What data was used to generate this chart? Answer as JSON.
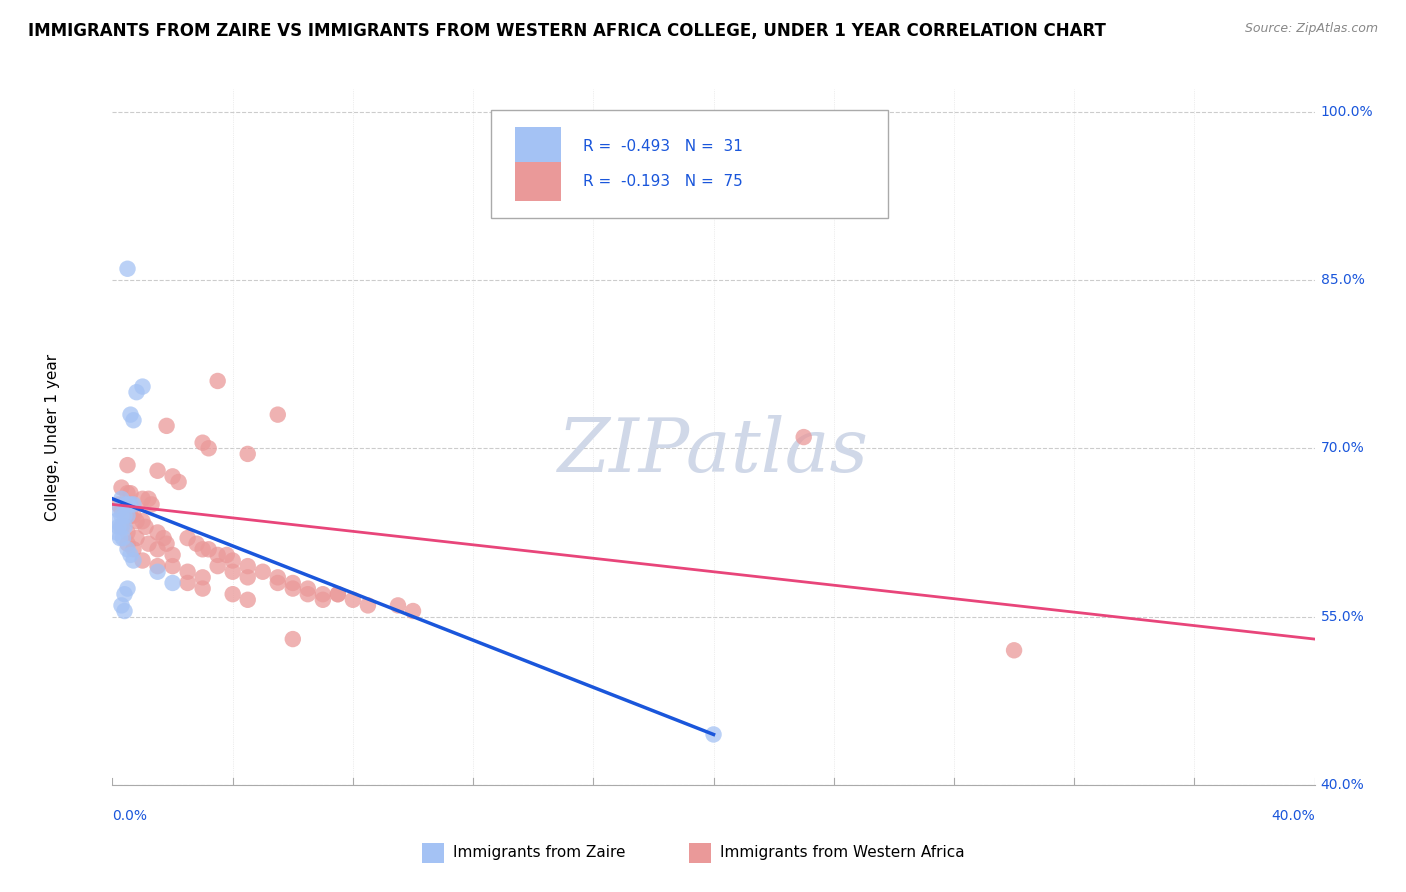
{
  "title": "IMMIGRANTS FROM ZAIRE VS IMMIGRANTS FROM WESTERN AFRICA COLLEGE, UNDER 1 YEAR CORRELATION CHART",
  "source": "Source: ZipAtlas.com",
  "ylabel": "College, Under 1 year",
  "legend_entry1": "R =  -0.493   N =  31",
  "legend_entry2": "R =  -0.193   N =  75",
  "legend_label1": "Immigrants from Zaire",
  "legend_label2": "Immigrants from Western Africa",
  "blue_color": "#a4c2f4",
  "pink_color": "#ea9999",
  "blue_line_color": "#1a56db",
  "pink_line_color": "#e8457a",
  "watermark_color": "#d0d8e8",
  "zaire_points": [
    [
      0.5,
      86.0
    ],
    [
      0.8,
      75.0
    ],
    [
      1.0,
      75.5
    ],
    [
      0.6,
      73.0
    ],
    [
      0.7,
      72.5
    ],
    [
      0.3,
      65.5
    ],
    [
      0.4,
      65.0
    ],
    [
      0.5,
      65.0
    ],
    [
      0.6,
      65.0
    ],
    [
      0.7,
      65.0
    ],
    [
      0.2,
      64.5
    ],
    [
      0.3,
      64.0
    ],
    [
      0.4,
      64.0
    ],
    [
      0.5,
      64.0
    ],
    [
      0.1,
      63.5
    ],
    [
      0.2,
      63.0
    ],
    [
      0.3,
      63.0
    ],
    [
      0.4,
      63.0
    ],
    [
      0.15,
      62.5
    ],
    [
      0.25,
      62.0
    ],
    [
      0.35,
      62.0
    ],
    [
      0.5,
      61.0
    ],
    [
      0.6,
      60.5
    ],
    [
      0.7,
      60.0
    ],
    [
      1.5,
      59.0
    ],
    [
      2.0,
      58.0
    ],
    [
      0.4,
      57.0
    ],
    [
      0.5,
      57.5
    ],
    [
      0.3,
      56.0
    ],
    [
      0.4,
      55.5
    ],
    [
      20.0,
      44.5
    ]
  ],
  "western_points": [
    [
      3.5,
      76.0
    ],
    [
      5.5,
      73.0
    ],
    [
      1.8,
      72.0
    ],
    [
      3.0,
      70.5
    ],
    [
      3.2,
      70.0
    ],
    [
      4.5,
      69.5
    ],
    [
      0.5,
      68.5
    ],
    [
      1.5,
      68.0
    ],
    [
      2.0,
      67.5
    ],
    [
      2.2,
      67.0
    ],
    [
      0.3,
      66.5
    ],
    [
      0.5,
      66.0
    ],
    [
      0.6,
      66.0
    ],
    [
      1.0,
      65.5
    ],
    [
      1.2,
      65.5
    ],
    [
      1.3,
      65.0
    ],
    [
      0.2,
      65.0
    ],
    [
      0.4,
      65.0
    ],
    [
      0.5,
      64.5
    ],
    [
      0.3,
      64.5
    ],
    [
      0.5,
      64.0
    ],
    [
      0.6,
      64.0
    ],
    [
      0.7,
      64.0
    ],
    [
      0.8,
      63.5
    ],
    [
      1.0,
      63.5
    ],
    [
      1.1,
      63.0
    ],
    [
      1.5,
      62.5
    ],
    [
      1.7,
      62.0
    ],
    [
      1.8,
      61.5
    ],
    [
      2.5,
      62.0
    ],
    [
      2.8,
      61.5
    ],
    [
      3.0,
      61.0
    ],
    [
      3.5,
      60.5
    ],
    [
      4.0,
      60.0
    ],
    [
      3.2,
      61.0
    ],
    [
      3.8,
      60.5
    ],
    [
      4.5,
      59.5
    ],
    [
      5.0,
      59.0
    ],
    [
      5.5,
      58.5
    ],
    [
      6.0,
      58.0
    ],
    [
      2.0,
      59.5
    ],
    [
      2.5,
      59.0
    ],
    [
      3.0,
      58.5
    ],
    [
      6.5,
      57.5
    ],
    [
      7.0,
      57.0
    ],
    [
      0.3,
      63.0
    ],
    [
      0.5,
      62.5
    ],
    [
      0.8,
      62.0
    ],
    [
      1.2,
      61.5
    ],
    [
      1.5,
      61.0
    ],
    [
      2.0,
      60.5
    ],
    [
      3.5,
      59.5
    ],
    [
      4.0,
      59.0
    ],
    [
      4.5,
      58.5
    ],
    [
      6.0,
      57.5
    ],
    [
      7.5,
      57.0
    ],
    [
      2.5,
      58.0
    ],
    [
      3.0,
      57.5
    ],
    [
      4.0,
      57.0
    ],
    [
      4.5,
      56.5
    ],
    [
      7.5,
      57.0
    ],
    [
      8.0,
      56.5
    ],
    [
      9.5,
      56.0
    ],
    [
      10.0,
      55.5
    ],
    [
      6.0,
      53.0
    ],
    [
      23.0,
      71.0
    ],
    [
      7.0,
      56.5
    ],
    [
      8.5,
      56.0
    ],
    [
      0.5,
      61.5
    ],
    [
      0.7,
      61.0
    ],
    [
      1.0,
      60.0
    ],
    [
      1.5,
      59.5
    ],
    [
      5.5,
      58.0
    ],
    [
      6.5,
      57.0
    ],
    [
      30.0,
      52.0
    ]
  ],
  "zaire_line": {
    "x0": 0.0,
    "y0": 65.5,
    "x1": 20.0,
    "y1": 44.5
  },
  "western_line": {
    "x0": 0.0,
    "y0": 65.0,
    "x1": 40.0,
    "y1": 53.0
  },
  "xmin": 0.0,
  "xmax": 40.0,
  "ymin": 40.0,
  "ymax": 102.0,
  "ytick_labels": [
    "40.0%",
    "55.0%",
    "70.0%",
    "85.0%",
    "100.0%"
  ],
  "ytick_values": [
    40.0,
    55.0,
    70.0,
    85.0,
    100.0
  ],
  "background_color": "#ffffff",
  "grid_color": "#cccccc",
  "title_fontsize": 12,
  "axis_label_fontsize": 11,
  "tick_label_fontsize": 10,
  "legend_fontsize": 11
}
